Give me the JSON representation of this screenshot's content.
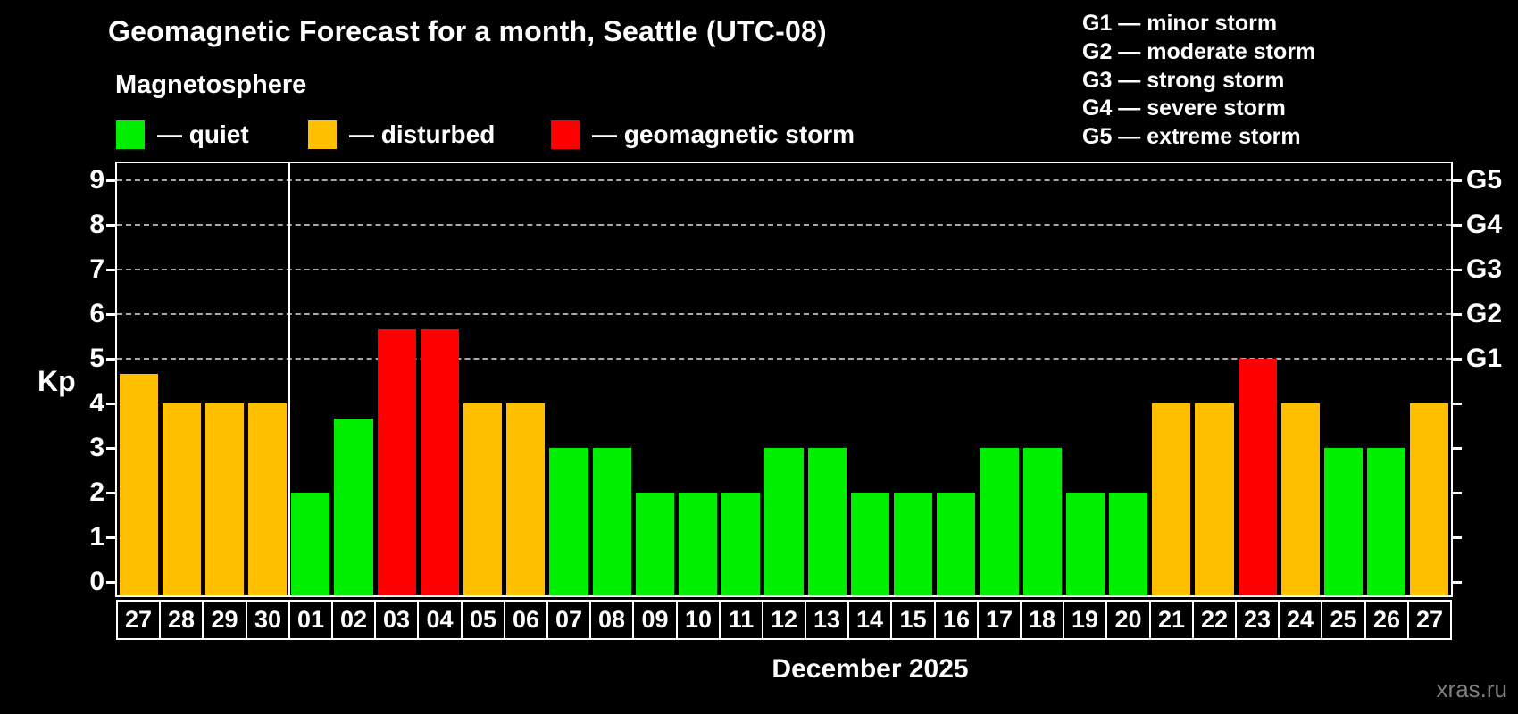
{
  "header": {
    "title": "Geomagnetic Forecast for a month, Seattle (UTC-08)",
    "subtitle": "Magnetosphere"
  },
  "legend": {
    "items": [
      {
        "label": "— quiet",
        "status": "quiet",
        "color": "#00ee00"
      },
      {
        "label": "— disturbed",
        "status": "disturbed",
        "color": "#ffbf00"
      },
      {
        "label": "— geomagnetic storm",
        "status": "storm",
        "color": "#ff0000"
      }
    ]
  },
  "g_legend": {
    "items": [
      "G1 — minor storm",
      "G2 — moderate storm",
      "G3 — strong storm",
      "G4 — severe storm",
      "G5 — extreme storm"
    ]
  },
  "axis": {
    "y_label": "Kp",
    "y_ticks": [
      0,
      1,
      2,
      3,
      4,
      5,
      6,
      7,
      8,
      9
    ],
    "right_labels": [
      {
        "label": "G1",
        "kp": 5
      },
      {
        "label": "G2",
        "kp": 6
      },
      {
        "label": "G3",
        "kp": 7
      },
      {
        "label": "G4",
        "kp": 8
      },
      {
        "label": "G5",
        "kp": 9
      }
    ]
  },
  "footer": {
    "month_label": "December 2025",
    "watermark": "xras.ru"
  },
  "chart_data": {
    "type": "bar",
    "title": "Geomagnetic Forecast for a month, Seattle (UTC-08)",
    "subtitle": "Magnetosphere",
    "ylabel": "Kp",
    "ylim": [
      0,
      9
    ],
    "gridlines_at": [
      5,
      6,
      7,
      8,
      9
    ],
    "grid_style": "dashed",
    "legend_position": "top-left",
    "categories": [
      "27",
      "28",
      "29",
      "30",
      "01",
      "02",
      "03",
      "04",
      "05",
      "06",
      "07",
      "08",
      "09",
      "10",
      "11",
      "12",
      "13",
      "14",
      "15",
      "16",
      "17",
      "18",
      "19",
      "20",
      "21",
      "22",
      "23",
      "24",
      "25",
      "26",
      "27"
    ],
    "values": [
      4.67,
      4,
      4,
      4,
      2,
      3.67,
      5.67,
      5.67,
      4,
      4,
      3,
      3,
      2,
      2,
      2,
      3,
      3,
      2,
      2,
      2,
      3,
      3,
      2,
      2,
      4,
      4,
      5,
      4,
      3,
      3,
      4
    ],
    "statuses": [
      "disturbed",
      "disturbed",
      "disturbed",
      "disturbed",
      "quiet",
      "quiet",
      "storm",
      "storm",
      "disturbed",
      "disturbed",
      "quiet",
      "quiet",
      "quiet",
      "quiet",
      "quiet",
      "quiet",
      "quiet",
      "quiet",
      "quiet",
      "quiet",
      "quiet",
      "quiet",
      "quiet",
      "quiet",
      "disturbed",
      "disturbed",
      "storm",
      "disturbed",
      "quiet",
      "quiet",
      "disturbed"
    ],
    "colors": {
      "quiet": "#00ee00",
      "disturbed": "#ffbf00",
      "storm": "#ff0000"
    },
    "month_separator_after_index": 3,
    "month_label": "December 2025"
  }
}
